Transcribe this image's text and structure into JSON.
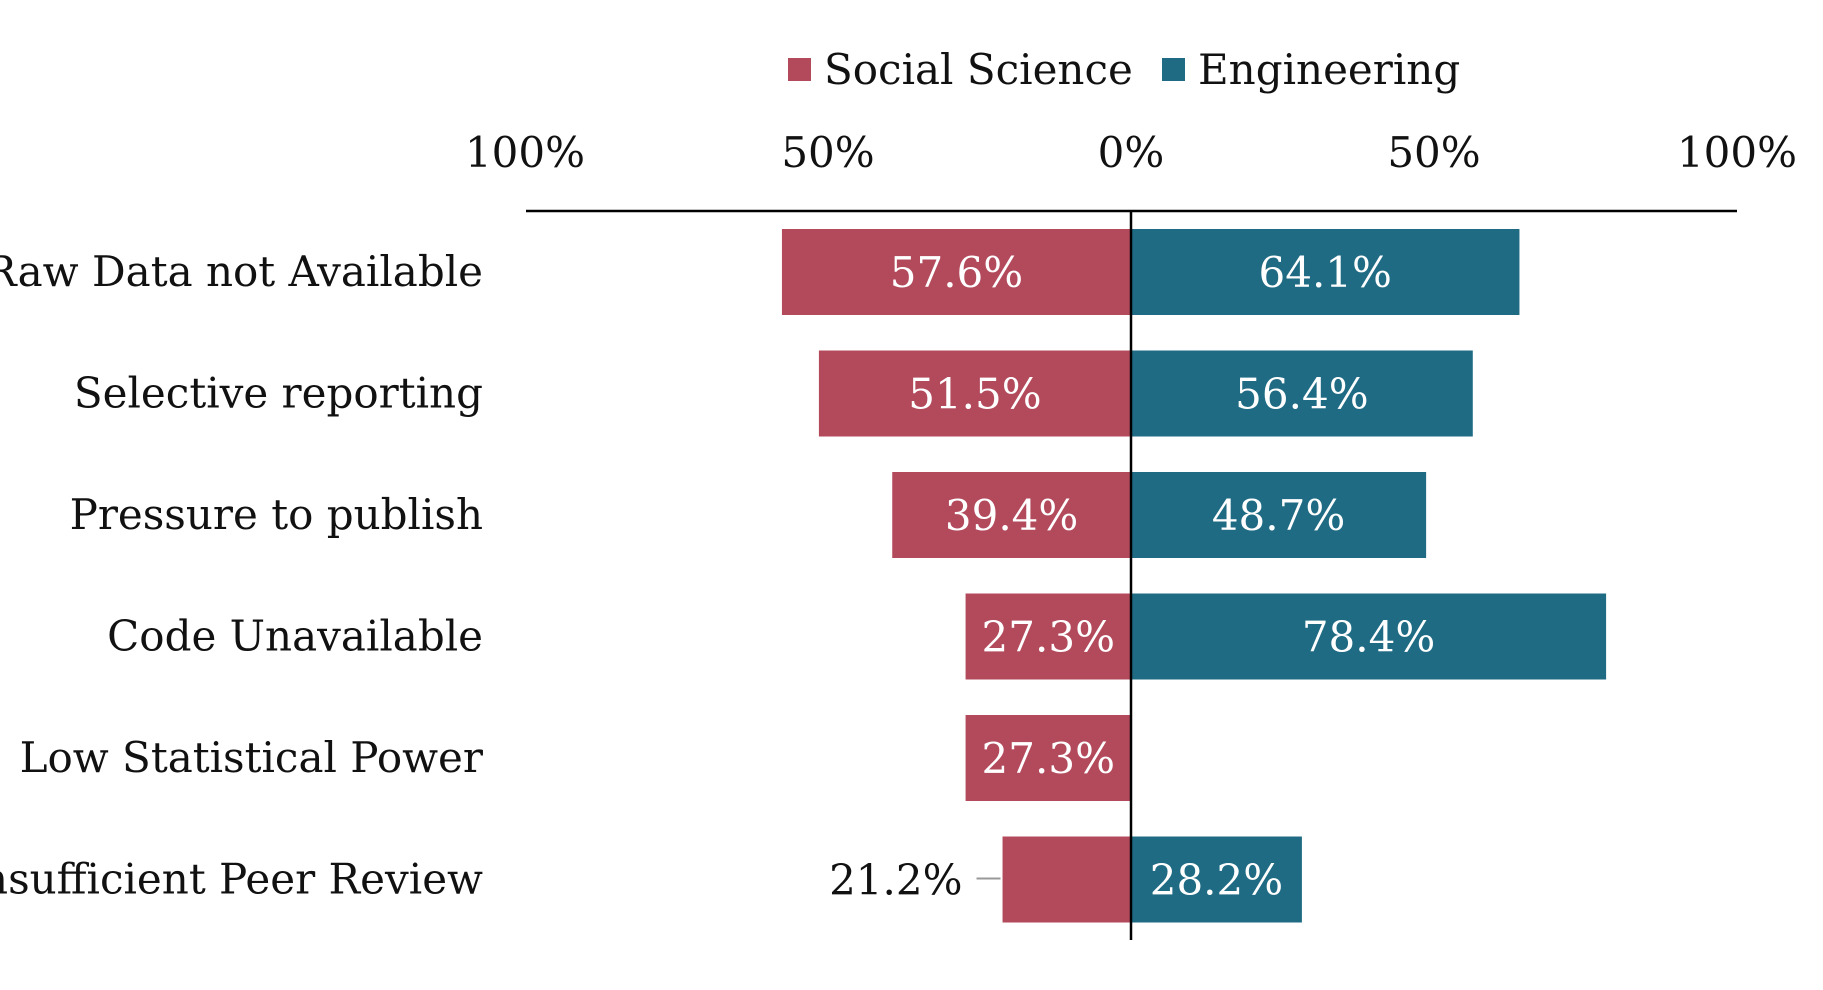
{
  "chart_data": {
    "type": "bar",
    "orientation": "horizontal-diverging",
    "title": "",
    "xlabel": "",
    "ylabel": "",
    "xlim": [
      -100,
      100
    ],
    "x_ticks": [
      {
        "value": -100,
        "label": "100%"
      },
      {
        "value": -50,
        "label": "50%"
      },
      {
        "value": 0,
        "label": "0%"
      },
      {
        "value": 50,
        "label": "50%"
      },
      {
        "value": 100,
        "label": "100%"
      }
    ],
    "categories": [
      "Raw Data not Available",
      "Selective reporting",
      "Pressure to publish",
      "Code Unavailable",
      "Low Statistical Power",
      "Insufficient Peer Review"
    ],
    "series": [
      {
        "name": "Social Science",
        "side": "left",
        "color": "#b34a5c",
        "values": [
          57.6,
          51.5,
          39.4,
          27.3,
          27.3,
          21.2
        ],
        "labels": [
          "57.6%",
          "51.5%",
          "39.4%",
          "27.3%",
          "27.3%",
          "21.2%"
        ]
      },
      {
        "name": "Engineering",
        "side": "right",
        "color": "#1f6b84",
        "values": [
          64.1,
          56.4,
          48.7,
          78.4,
          0,
          28.2
        ],
        "labels": [
          "64.1%",
          "56.4%",
          "48.7%",
          "78.4%",
          "",
          "28.2%"
        ]
      }
    ],
    "legend": {
      "position": "top-center"
    },
    "grid": false
  }
}
